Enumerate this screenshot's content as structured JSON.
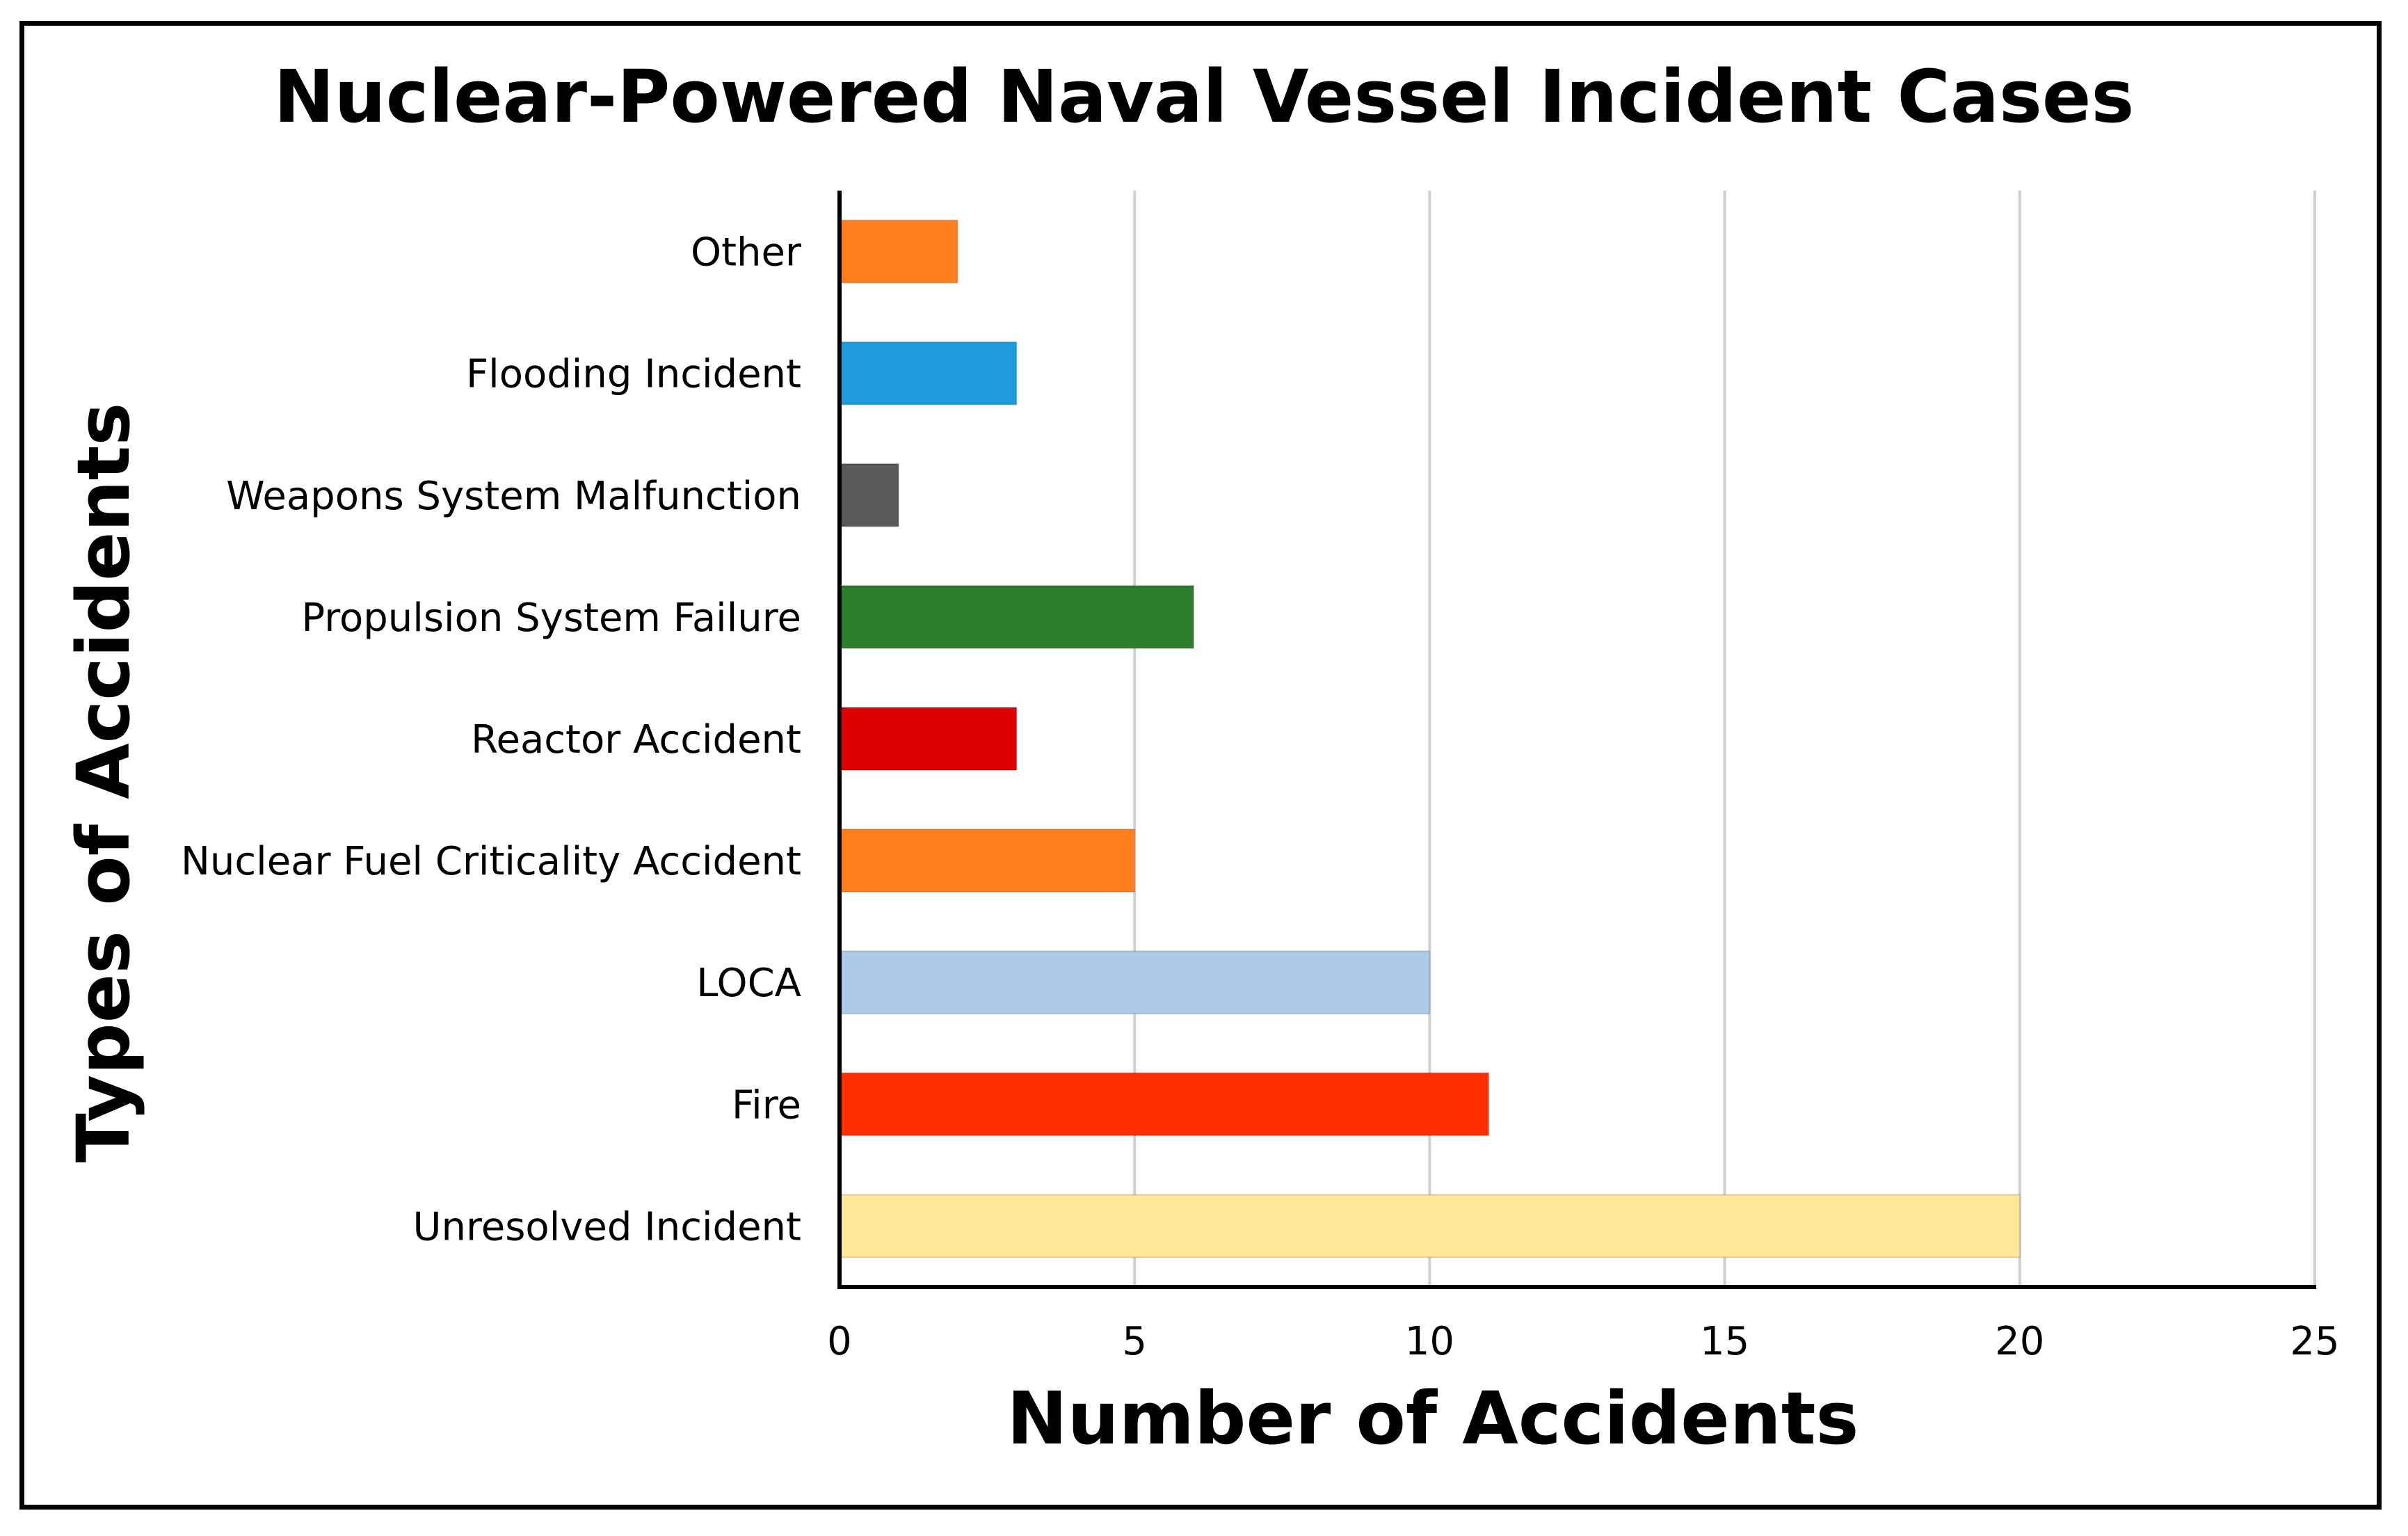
{
  "chart_data": {
    "type": "bar",
    "orientation": "horizontal",
    "title": "Nuclear-Powered Naval Vessel Incident Cases",
    "xlabel": "Number of Accidents",
    "ylabel": "Types of Accidents",
    "xlim": [
      0,
      25
    ],
    "xticks": [
      0,
      5,
      10,
      15,
      20,
      25
    ],
    "grid": "vertical",
    "legend": "none",
    "categories": [
      "Other",
      "Flooding Incident",
      "Weapons System Malfunction",
      "Propulsion System Failure",
      "Reactor Accident",
      "Nuclear Fuel Criticality Accident",
      "LOCA",
      "Fire",
      "Unresolved Incident"
    ],
    "values": [
      2,
      3,
      1,
      6,
      3,
      5,
      10,
      11,
      20
    ],
    "colors": [
      "#FF7F1E",
      "#1E9BDB",
      "#595959",
      "#2E7D2E",
      "#DD0000",
      "#FF7F1E",
      "#AECAE8",
      "#FF2E00",
      "#FFE699"
    ]
  }
}
